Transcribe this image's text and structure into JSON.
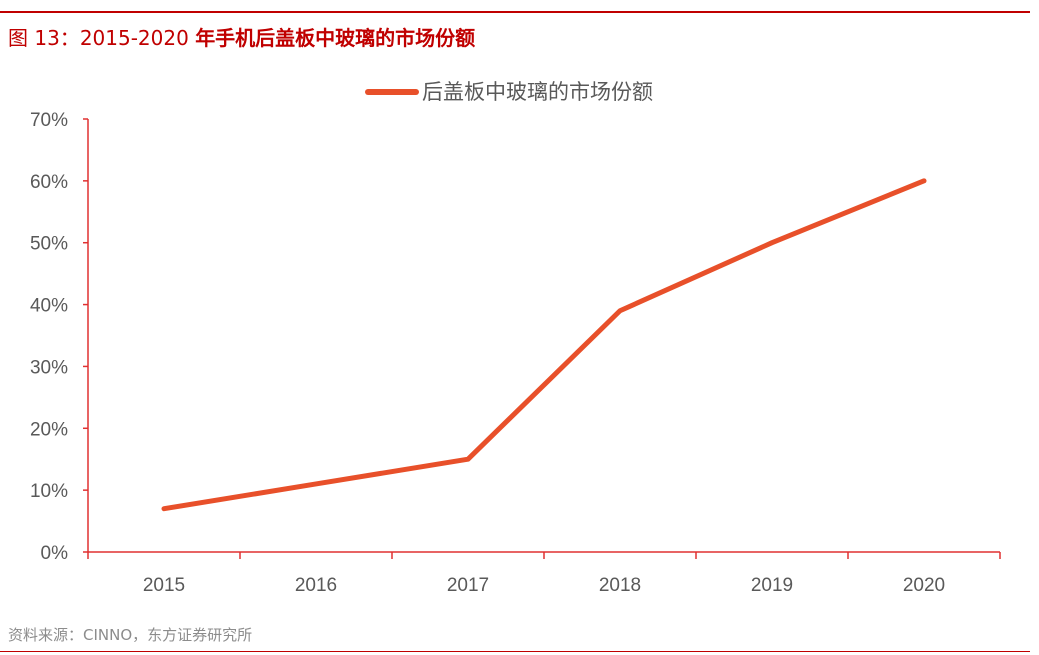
{
  "header": {
    "figure_label": "图 13：",
    "title_year": "2015-2020 ",
    "title_text": "年手机后盖板中玻璃的市场份额"
  },
  "source": "资料来源：CINNO，东方证券研究所",
  "colors": {
    "accent": "#c00000",
    "series": "#e8502a",
    "axis": "#e03030"
  },
  "chart_data": {
    "type": "line",
    "categories": [
      "2015",
      "2016",
      "2017",
      "2018",
      "2019",
      "2020"
    ],
    "series": [
      {
        "name": "后盖板中玻璃的市场份额",
        "values": [
          7,
          11,
          15,
          39,
          50,
          60
        ]
      }
    ],
    "yticks": [
      "0%",
      "10%",
      "20%",
      "30%",
      "40%",
      "50%",
      "60%",
      "70%"
    ],
    "ylim": [
      0,
      70
    ],
    "yunit": "%",
    "grid": false,
    "legend_placement": "top-center"
  }
}
